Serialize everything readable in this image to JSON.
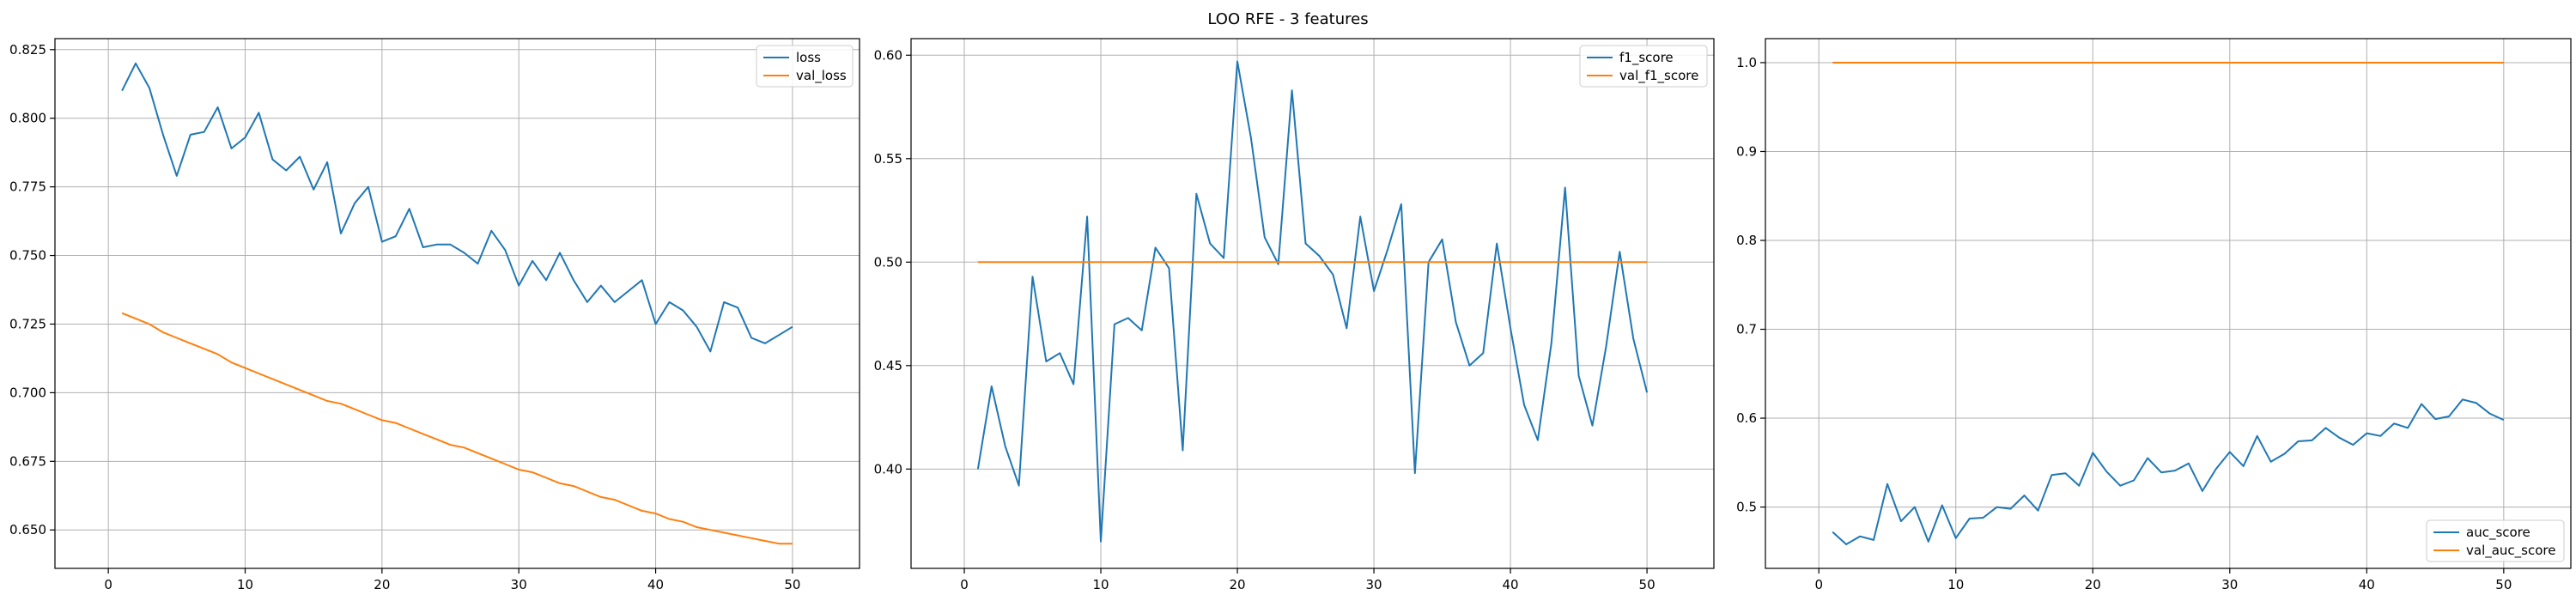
{
  "figure": {
    "title": "LOO RFE - 3 features"
  },
  "colors": {
    "series1": "#1f77b4",
    "series2": "#ff7f0e",
    "grid": "#b0b0b0",
    "axis": "#000000"
  },
  "chart_data": [
    {
      "type": "line",
      "x": [
        1,
        2,
        3,
        4,
        5,
        6,
        7,
        8,
        9,
        10,
        11,
        12,
        13,
        14,
        15,
        16,
        17,
        18,
        19,
        20,
        21,
        22,
        23,
        24,
        25,
        26,
        27,
        28,
        29,
        30,
        31,
        32,
        33,
        34,
        35,
        36,
        37,
        38,
        39,
        40,
        41,
        42,
        43,
        44,
        45,
        46,
        47,
        48,
        49,
        50
      ],
      "xlim": [
        -3.9,
        54.9
      ],
      "ylim": [
        0.636,
        0.829
      ],
      "xticks": [
        0,
        10,
        20,
        30,
        40,
        50
      ],
      "yticks": [
        0.65,
        0.675,
        0.7,
        0.725,
        0.75,
        0.775,
        0.8,
        0.825
      ],
      "ytick_labels": [
        "0.650",
        "0.675",
        "0.700",
        "0.725",
        "0.750",
        "0.775",
        "0.800",
        "0.825"
      ],
      "grid": true,
      "legend": "top-right",
      "series": [
        {
          "name": "loss",
          "color": "#1f77b4",
          "values": [
            0.81,
            0.82,
            0.811,
            0.794,
            0.779,
            0.794,
            0.795,
            0.804,
            0.789,
            0.793,
            0.802,
            0.785,
            0.781,
            0.786,
            0.774,
            0.784,
            0.758,
            0.769,
            0.775,
            0.755,
            0.757,
            0.767,
            0.753,
            0.754,
            0.754,
            0.751,
            0.747,
            0.759,
            0.752,
            0.739,
            0.748,
            0.741,
            0.751,
            0.741,
            0.733,
            0.739,
            0.733,
            0.737,
            0.741,
            0.725,
            0.733,
            0.73,
            0.724,
            0.715,
            0.733,
            0.731,
            0.72,
            0.718,
            0.721,
            0.724
          ]
        },
        {
          "name": "val_loss",
          "color": "#ff7f0e",
          "values": [
            0.729,
            0.727,
            0.725,
            0.722,
            0.72,
            0.718,
            0.716,
            0.714,
            0.711,
            0.709,
            0.707,
            0.705,
            0.703,
            0.701,
            0.699,
            0.697,
            0.696,
            0.694,
            0.692,
            0.69,
            0.689,
            0.687,
            0.685,
            0.683,
            0.681,
            0.68,
            0.678,
            0.676,
            0.674,
            0.672,
            0.671,
            0.669,
            0.667,
            0.666,
            0.664,
            0.662,
            0.661,
            0.659,
            0.657,
            0.656,
            0.654,
            0.653,
            0.651,
            0.65,
            0.649,
            0.648,
            0.647,
            0.646,
            0.645,
            0.645
          ]
        }
      ]
    },
    {
      "type": "line",
      "x": [
        1,
        2,
        3,
        4,
        5,
        6,
        7,
        8,
        9,
        10,
        11,
        12,
        13,
        14,
        15,
        16,
        17,
        18,
        19,
        20,
        21,
        22,
        23,
        24,
        25,
        26,
        27,
        28,
        29,
        30,
        31,
        32,
        33,
        34,
        35,
        36,
        37,
        38,
        39,
        40,
        41,
        42,
        43,
        44,
        45,
        46,
        47,
        48,
        49,
        50
      ],
      "xlim": [
        -3.9,
        54.9
      ],
      "ylim": [
        0.352,
        0.608
      ],
      "xticks": [
        0,
        10,
        20,
        30,
        40,
        50
      ],
      "yticks": [
        0.4,
        0.45,
        0.5,
        0.55,
        0.6
      ],
      "ytick_labels": [
        "0.40",
        "0.45",
        "0.50",
        "0.55",
        "0.60"
      ],
      "grid": true,
      "legend": "top-right",
      "series": [
        {
          "name": "f1_score",
          "color": "#1f77b4",
          "values": [
            0.4,
            0.44,
            0.411,
            0.392,
            0.493,
            0.452,
            0.456,
            0.441,
            0.522,
            0.365,
            0.47,
            0.473,
            0.467,
            0.507,
            0.497,
            0.409,
            0.533,
            0.509,
            0.502,
            0.597,
            0.56,
            0.512,
            0.499,
            0.583,
            0.509,
            0.503,
            0.494,
            0.468,
            0.522,
            0.486,
            0.506,
            0.528,
            0.398,
            0.5,
            0.511,
            0.471,
            0.45,
            0.456,
            0.509,
            0.468,
            0.431,
            0.414,
            0.461,
            0.536,
            0.445,
            0.421,
            0.459,
            0.505,
            0.463,
            0.437
          ]
        },
        {
          "name": "val_f1_score",
          "color": "#ff7f0e",
          "values": [
            0.5,
            0.5,
            0.5,
            0.5,
            0.5,
            0.5,
            0.5,
            0.5,
            0.5,
            0.5,
            0.5,
            0.5,
            0.5,
            0.5,
            0.5,
            0.5,
            0.5,
            0.5,
            0.5,
            0.5,
            0.5,
            0.5,
            0.5,
            0.5,
            0.5,
            0.5,
            0.5,
            0.5,
            0.5,
            0.5,
            0.5,
            0.5,
            0.5,
            0.5,
            0.5,
            0.5,
            0.5,
            0.5,
            0.5,
            0.5,
            0.5,
            0.5,
            0.5,
            0.5,
            0.5,
            0.5,
            0.5,
            0.5,
            0.5,
            0.5
          ]
        }
      ]
    },
    {
      "type": "line",
      "x": [
        1,
        2,
        3,
        4,
        5,
        6,
        7,
        8,
        9,
        10,
        11,
        12,
        13,
        14,
        15,
        16,
        17,
        18,
        19,
        20,
        21,
        22,
        23,
        24,
        25,
        26,
        27,
        28,
        29,
        30,
        31,
        32,
        33,
        34,
        35,
        36,
        37,
        38,
        39,
        40,
        41,
        42,
        43,
        44,
        45,
        46,
        47,
        48,
        49,
        50
      ],
      "xlim": [
        -3.9,
        54.9
      ],
      "ylim": [
        0.431,
        1.027
      ],
      "xticks": [
        0,
        10,
        20,
        30,
        40,
        50
      ],
      "yticks": [
        0.5,
        0.6,
        0.7,
        0.8,
        0.9,
        1.0
      ],
      "ytick_labels": [
        "0.5",
        "0.6",
        "0.7",
        "0.8",
        "0.9",
        "1.0"
      ],
      "grid": true,
      "legend": "bottom-right",
      "series": [
        {
          "name": "auc_score",
          "color": "#1f77b4",
          "values": [
            0.472,
            0.458,
            0.467,
            0.463,
            0.526,
            0.484,
            0.5,
            0.461,
            0.502,
            0.465,
            0.487,
            0.488,
            0.5,
            0.498,
            0.513,
            0.496,
            0.536,
            0.538,
            0.524,
            0.561,
            0.54,
            0.524,
            0.53,
            0.555,
            0.539,
            0.541,
            0.549,
            0.518,
            0.543,
            0.562,
            0.546,
            0.58,
            0.551,
            0.56,
            0.574,
            0.575,
            0.589,
            0.578,
            0.57,
            0.583,
            0.58,
            0.594,
            0.589,
            0.616,
            0.599,
            0.602,
            0.621,
            0.617,
            0.605,
            0.598
          ]
        },
        {
          "name": "val_auc_score",
          "color": "#ff7f0e",
          "values": [
            1,
            1,
            1,
            1,
            1,
            1,
            1,
            1,
            1,
            1,
            1,
            1,
            1,
            1,
            1,
            1,
            1,
            1,
            1,
            1,
            1,
            1,
            1,
            1,
            1,
            1,
            1,
            1,
            1,
            1,
            1,
            1,
            1,
            1,
            1,
            1,
            1,
            1,
            1,
            1,
            1,
            1,
            1,
            1,
            1,
            1,
            1,
            1,
            1,
            1
          ]
        }
      ]
    }
  ]
}
